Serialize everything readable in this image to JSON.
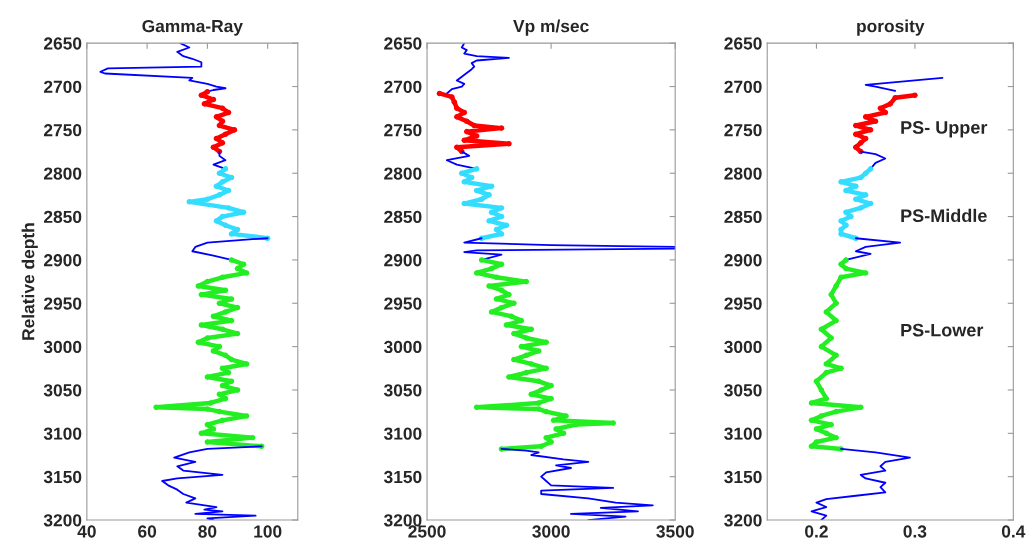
{
  "chart_data": [
    {
      "type": "line",
      "title": "Gamma-Ray",
      "ylabel": "Relative depth",
      "xlim": [
        40,
        110
      ],
      "xticks": [
        40,
        60,
        80,
        100
      ],
      "ylim": [
        3200,
        2650
      ],
      "yticks": [
        2650,
        2700,
        2750,
        2800,
        2850,
        2900,
        2950,
        3000,
        3050,
        3100,
        3150,
        3200
      ],
      "grid": false,
      "series": [
        {
          "color": "#0000ff",
          "marker": "none",
          "x": [
            71,
            74,
            70,
            72,
            75,
            78,
            78,
            47,
            44.5,
            46,
            75,
            74,
            80,
            83,
            86,
            82,
            80
          ],
          "values": [
            2650,
            2655,
            2660,
            2665,
            2668,
            2672,
            2677,
            2679,
            2683,
            2685,
            2690,
            2693,
            2697,
            2700,
            2702,
            2704,
            2706
          ]
        },
        {
          "color": "#ff0000",
          "marker": "circle",
          "x": [
            80,
            78,
            82,
            79,
            85,
            87,
            83,
            85,
            84,
            89,
            86,
            83,
            85,
            82,
            84
          ],
          "values": [
            2706,
            2710,
            2715,
            2720,
            2725,
            2730,
            2735,
            2740,
            2745,
            2750,
            2755,
            2760,
            2765,
            2770,
            2775
          ]
        },
        {
          "color": "#0000ff",
          "marker": "none",
          "x": [
            84,
            84,
            86,
            82,
            86
          ],
          "values": [
            2775,
            2780,
            2785,
            2790,
            2795
          ]
        },
        {
          "color": "#33ddff",
          "marker": "circle",
          "x": [
            86,
            84,
            88,
            85,
            83,
            87,
            84,
            80,
            74,
            87,
            92,
            85,
            83,
            86,
            90,
            88,
            100
          ],
          "values": [
            2795,
            2800,
            2805,
            2810,
            2815,
            2820,
            2825,
            2830,
            2833,
            2840,
            2845,
            2850,
            2855,
            2860,
            2865,
            2870,
            2875
          ]
        },
        {
          "color": "#0000ff",
          "marker": "none",
          "x": [
            100,
            95,
            80,
            76,
            75,
            82,
            88
          ],
          "values": [
            2875,
            2876,
            2880,
            2885,
            2890,
            2895,
            2900
          ]
        },
        {
          "color": "#22ee22",
          "marker": "circle",
          "x": [
            88,
            92,
            90,
            93,
            85,
            80,
            77,
            86,
            78,
            88,
            84,
            90,
            86,
            82,
            88,
            78,
            85,
            90,
            80,
            77,
            84,
            82,
            86,
            88,
            93,
            85,
            87,
            80,
            88,
            85,
            90,
            84,
            86,
            81,
            63,
            80,
            84,
            93,
            85,
            80,
            82,
            78,
            95,
            80,
            98
          ],
          "values": [
            2900,
            2905,
            2910,
            2915,
            2920,
            2925,
            2930,
            2935,
            2940,
            2945,
            2950,
            2955,
            2960,
            2965,
            2970,
            2975,
            2980,
            2985,
            2990,
            2995,
            3000,
            3005,
            3010,
            3015,
            3020,
            3025,
            3030,
            3035,
            3040,
            3045,
            3050,
            3055,
            3060,
            3065,
            3070,
            3072,
            3075,
            3080,
            3085,
            3090,
            3095,
            3100,
            3105,
            3110,
            3115
          ]
        },
        {
          "color": "#0000ff",
          "marker": "none",
          "x": [
            98,
            80,
            74,
            69,
            76,
            70,
            72,
            85,
            70,
            65,
            67,
            70,
            72,
            76,
            73,
            83,
            79,
            85,
            76,
            96,
            80,
            82
          ],
          "values": [
            3115,
            3118,
            3122,
            3128,
            3133,
            3138,
            3143,
            3148,
            3152,
            3155,
            3160,
            3165,
            3170,
            3175,
            3180,
            3185,
            3188,
            3190,
            3193,
            3195,
            3198,
            3200
          ]
        }
      ]
    },
    {
      "type": "line",
      "title": "Vp m/sec",
      "xlim": [
        2500,
        3500
      ],
      "xticks": [
        2500,
        3000,
        3500
      ],
      "ylim": [
        3200,
        2650
      ],
      "yticks": [
        2650,
        2700,
        2750,
        2800,
        2850,
        2900,
        2950,
        3000,
        3050,
        3100,
        3150,
        3200
      ],
      "grid": false,
      "series": [
        {
          "color": "#0000ff",
          "marker": "none",
          "x": [
            2650,
            2640,
            2660,
            2650,
            2700,
            2830,
            2700,
            2680,
            2690,
            2680,
            2620,
            2650,
            2640,
            2600,
            2580
          ],
          "values": [
            2650,
            2655,
            2658,
            2662,
            2665,
            2667,
            2670,
            2673,
            2677,
            2680,
            2693,
            2697,
            2700,
            2703,
            2708
          ]
        },
        {
          "color": "#ff0000",
          "marker": "circle",
          "x": [
            2550,
            2600,
            2610,
            2620,
            2650,
            2620,
            2660,
            2690,
            2800,
            2660,
            2700,
            2650,
            2830,
            2620,
            2640
          ],
          "values": [
            2708,
            2712,
            2718,
            2725,
            2730,
            2735,
            2740,
            2745,
            2748,
            2752,
            2757,
            2762,
            2766,
            2770,
            2775
          ]
        },
        {
          "color": "#0000ff",
          "marker": "none",
          "x": [
            2640,
            2670,
            2580,
            2620,
            2700
          ],
          "values": [
            2775,
            2780,
            2785,
            2790,
            2795
          ]
        },
        {
          "color": "#33ddff",
          "marker": "circle",
          "x": [
            2700,
            2640,
            2680,
            2650,
            2760,
            2700,
            2750,
            2720,
            2650,
            2800,
            2760,
            2800,
            2750,
            2820,
            2780,
            2800,
            2720
          ],
          "values": [
            2795,
            2800,
            2805,
            2810,
            2815,
            2820,
            2825,
            2830,
            2835,
            2840,
            2845,
            2850,
            2855,
            2860,
            2865,
            2870,
            2875
          ]
        },
        {
          "color": "#0000ff",
          "marker": "none",
          "x": [
            2720,
            2650,
            3000,
            3500,
            3500,
            2700,
            2650,
            2800,
            2720
          ],
          "values": [
            2875,
            2880,
            2883,
            2885,
            2887,
            2889,
            2891,
            2894,
            2900
          ]
        },
        {
          "color": "#22ee22",
          "marker": "circle",
          "x": [
            2720,
            2800,
            2760,
            2700,
            2780,
            2900,
            2750,
            2800,
            2830,
            2780,
            2850,
            2800,
            2760,
            2840,
            2880,
            2820,
            2920,
            2850,
            2900,
            2980,
            2880,
            2950,
            2900,
            2850,
            2920,
            2980,
            2900,
            2830,
            2950,
            3000,
            2960,
            2920,
            3000,
            2950,
            2700,
            2950,
            2980,
            3060,
            3010,
            3250,
            3100,
            3020,
            3050,
            2980,
            3000,
            2960,
            2800
          ],
          "values": [
            2900,
            2905,
            2910,
            2915,
            2920,
            2925,
            2930,
            2935,
            2940,
            2945,
            2950,
            2955,
            2960,
            2965,
            2970,
            2975,
            2980,
            2985,
            2990,
            2995,
            3000,
            3005,
            3010,
            3015,
            3020,
            3025,
            3030,
            3035,
            3040,
            3045,
            3050,
            3055,
            3060,
            3065,
            3070,
            3072,
            3075,
            3080,
            3085,
            3088,
            3090,
            3095,
            3100,
            3105,
            3110,
            3115,
            3118
          ]
        },
        {
          "color": "#0000ff",
          "marker": "none",
          "x": [
            2800,
            2900,
            2950,
            2920,
            3050,
            3150,
            3020,
            3080,
            2980,
            2960,
            2980,
            3000,
            3250,
            2960,
            2960,
            3150,
            3260,
            3410,
            3200,
            3350,
            3080,
            3300,
            3150
          ],
          "values": [
            3118,
            3120,
            3122,
            3125,
            3130,
            3133,
            3137,
            3140,
            3145,
            3150,
            3155,
            3160,
            3163,
            3166,
            3170,
            3175,
            3180,
            3183,
            3186,
            3190,
            3193,
            3196,
            3200
          ]
        }
      ]
    },
    {
      "type": "line",
      "title": "porosity",
      "xlim": [
        0.15,
        0.4
      ],
      "xticks": [
        0.2,
        0.3,
        0.4
      ],
      "ylim": [
        3200,
        2650
      ],
      "yticks": [
        2650,
        2700,
        2750,
        2800,
        2850,
        2900,
        2950,
        3000,
        3050,
        3100,
        3150,
        3200
      ],
      "grid": false,
      "annotations": [
        "PS- Upper",
        "PS-Middle",
        "PS-Lower"
      ],
      "series": [
        {
          "color": "#0000ff",
          "marker": "none",
          "x": [
            0.328,
            0.25,
            0.26,
            0.28
          ],
          "values": [
            2690,
            2698,
            2700,
            2705
          ]
        },
        {
          "color": "#ff0000",
          "marker": "circle",
          "x": [
            0.3,
            0.28,
            0.275,
            0.265,
            0.27,
            0.25,
            0.26,
            0.24,
            0.255,
            0.24,
            0.25,
            0.245,
            0.24,
            0.245
          ],
          "values": [
            2710,
            2713,
            2720,
            2725,
            2730,
            2735,
            2740,
            2745,
            2750,
            2755,
            2760,
            2765,
            2770,
            2775
          ]
        },
        {
          "color": "#0000ff",
          "marker": "none",
          "x": [
            0.245,
            0.26,
            0.27,
            0.26,
            0.255
          ],
          "values": [
            2775,
            2778,
            2783,
            2788,
            2795
          ]
        },
        {
          "color": "#33ddff",
          "marker": "circle",
          "x": [
            0.255,
            0.25,
            0.245,
            0.225,
            0.24,
            0.23,
            0.25,
            0.24,
            0.255,
            0.245,
            0.23,
            0.235,
            0.225,
            0.23,
            0.225,
            0.225,
            0.24
          ],
          "values": [
            2795,
            2800,
            2805,
            2810,
            2815,
            2820,
            2825,
            2830,
            2835,
            2840,
            2845,
            2850,
            2855,
            2860,
            2865,
            2870,
            2875
          ]
        },
        {
          "color": "#0000ff",
          "marker": "none",
          "x": [
            0.24,
            0.285,
            0.25,
            0.24,
            0.255,
            0.23
          ],
          "values": [
            2875,
            2880,
            2885,
            2890,
            2893,
            2900
          ]
        },
        {
          "color": "#22ee22",
          "marker": "circle",
          "x": [
            0.23,
            0.225,
            0.23,
            0.25,
            0.225,
            0.22,
            0.215,
            0.22,
            0.21,
            0.22,
            0.205,
            0.215,
            0.205,
            0.22,
            0.21,
            0.225,
            0.21,
            0.2,
            0.205,
            0.21,
            0.195,
            0.245,
            0.22,
            0.205,
            0.195,
            0.215,
            0.2,
            0.21,
            0.22,
            0.2,
            0.195,
            0.225
          ],
          "values": [
            2900,
            2905,
            2910,
            2915,
            2920,
            2930,
            2940,
            2950,
            2960,
            2970,
            2980,
            2990,
            3000,
            3010,
            3020,
            3025,
            3030,
            3040,
            3050,
            3060,
            3065,
            3070,
            3075,
            3080,
            3085,
            3090,
            3095,
            3100,
            3105,
            3110,
            3115,
            3118
          ]
        },
        {
          "color": "#0000ff",
          "marker": "none",
          "x": [
            0.225,
            0.26,
            0.295,
            0.27,
            0.265,
            0.27,
            0.245,
            0.25,
            0.27,
            0.265,
            0.27,
            0.24,
            0.21,
            0.2,
            0.21,
            0.195,
            0.21,
            0.205
          ],
          "values": [
            3118,
            3122,
            3128,
            3133,
            3138,
            3143,
            3148,
            3152,
            3157,
            3162,
            3168,
            3172,
            3176,
            3180,
            3185,
            3190,
            3195,
            3200
          ]
        }
      ]
    }
  ]
}
